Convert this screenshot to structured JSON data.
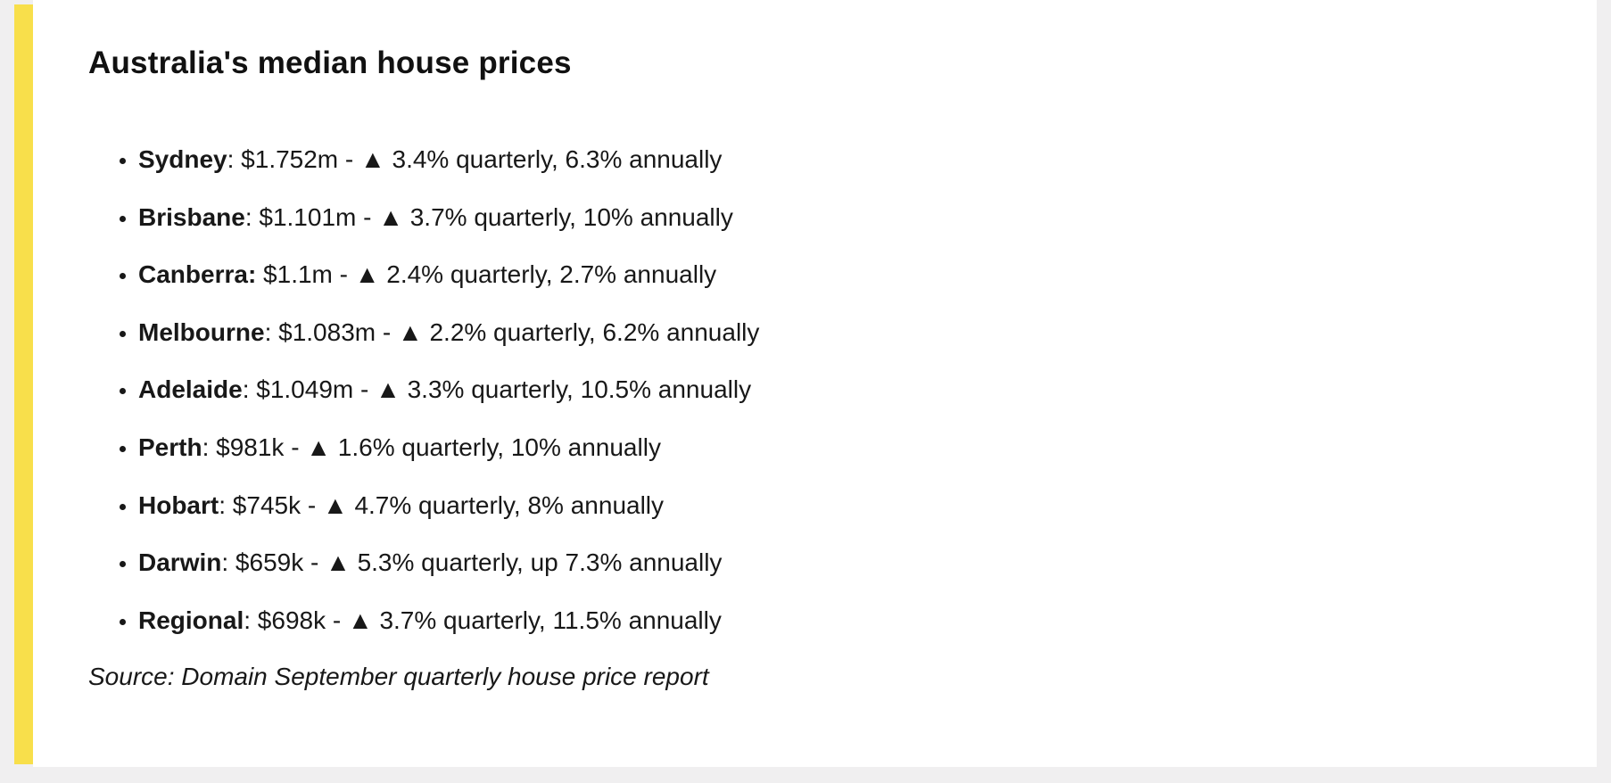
{
  "colors": {
    "accent_bar": "#f8df4b",
    "card_background": "#ffffff",
    "page_background": "#f0eff0",
    "text": "#181818"
  },
  "post": {
    "title": "Australia's median house prices",
    "items": [
      {
        "bold": "Sydney",
        "rest": ": $1.752m - ▲ 3.4% quarterly, 6.3% annually"
      },
      {
        "bold": "Brisbane",
        "rest": ": $1.101m - ▲ 3.7% quarterly, 10% annually"
      },
      {
        "bold": "Canberra:",
        "rest": " $1.1m - ▲ 2.4% quarterly, 2.7% annually"
      },
      {
        "bold": "Melbourne",
        "rest": ": $1.083m - ▲ 2.2% quarterly, 6.2% annually"
      },
      {
        "bold": "Adelaide",
        "rest": ": $1.049m - ▲ 3.3% quarterly, 10.5% annually"
      },
      {
        "bold": "Perth",
        "rest": ": $981k - ▲ 1.6% quarterly, 10% annually"
      },
      {
        "bold": "Hobart",
        "rest": ": $745k - ▲ 4.7% quarterly, 8% annually"
      },
      {
        "bold": "Darwin",
        "rest": ": $659k - ▲ 5.3% quarterly, up 7.3% annually"
      },
      {
        "bold": "Regional",
        "rest": ": $698k - ▲ 3.7% quarterly, 11.5% annually"
      }
    ],
    "source": "Source: Domain September quarterly house price report"
  }
}
